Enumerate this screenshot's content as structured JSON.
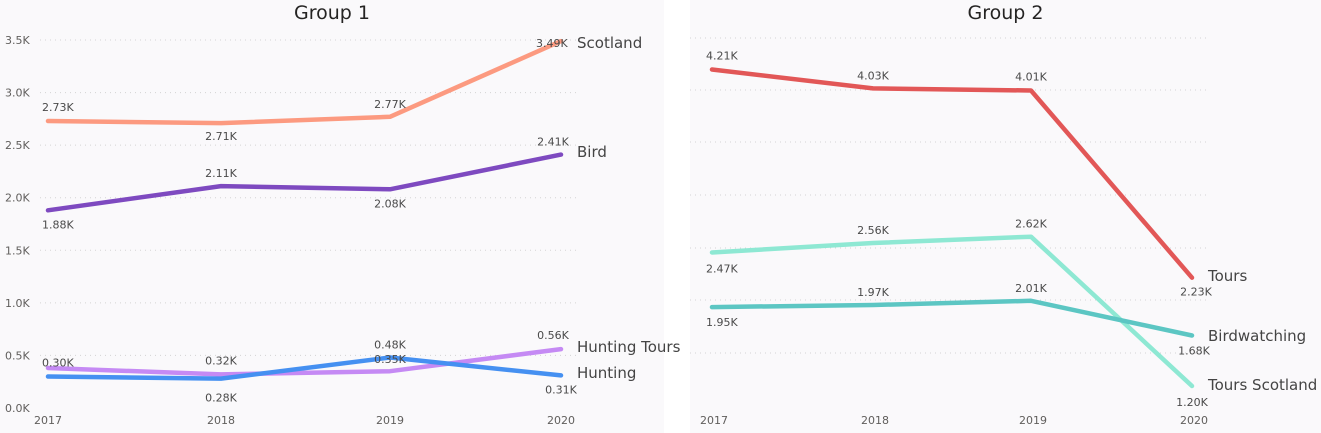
{
  "chart_data": [
    {
      "type": "line",
      "title": "Group 1",
      "x": [
        "2017",
        "2018",
        "2019",
        "2020"
      ],
      "ylim": [
        0,
        3500
      ],
      "yticks": [
        "0.0K",
        "0.5K",
        "1.0K",
        "1.5K",
        "2.0K",
        "2.5K",
        "3.0K",
        "3.5K"
      ],
      "ytick_values": [
        0,
        500,
        1000,
        1500,
        2000,
        2500,
        3000,
        3500
      ],
      "grid": true,
      "series": [
        {
          "name": "Scotland",
          "values": [
            2730,
            2710,
            2770,
            3490
          ],
          "labels": [
            "2.73K",
            "2.71K",
            "2.77K",
            "3.49K"
          ],
          "color": "#fc9a80"
        },
        {
          "name": "Bird",
          "values": [
            1880,
            2110,
            2080,
            2410
          ],
          "labels": [
            "1.88K",
            "2.11K",
            "2.08K",
            "2.41K"
          ],
          "color": "#7e4ac0"
        },
        {
          "name": "Hunting Tours",
          "values": [
            380,
            320,
            350,
            560
          ],
          "labels": [
            "",
            "0.32K",
            "0.35K",
            "0.56K"
          ],
          "color": "#c58af4"
        },
        {
          "name": "Hunting",
          "values": [
            300,
            280,
            480,
            310
          ],
          "labels": [
            "0.30K",
            "0.28K",
            "0.48K",
            "0.31K"
          ],
          "color": "#4590f1"
        }
      ]
    },
    {
      "type": "line",
      "title": "Group 2",
      "x": [
        "2017",
        "2018",
        "2019",
        "2020"
      ],
      "grid": true,
      "series": [
        {
          "name": "Tours",
          "values": [
            4210,
            4030,
            4010,
            2230
          ],
          "labels": [
            "4.21K",
            "4.03K",
            "4.01K",
            "2.23K"
          ],
          "color": "#e25757"
        },
        {
          "name": "Tours Scotland",
          "values": [
            2470,
            2560,
            2620,
            1200
          ],
          "labels": [
            "2.47K",
            "2.56K",
            "2.62K",
            "1.20K"
          ],
          "color": "#8ee8d3"
        },
        {
          "name": "Birdwatching",
          "values": [
            1950,
            1970,
            2010,
            1680
          ],
          "labels": [
            "1.95K",
            "1.97K",
            "2.01K",
            "1.68K"
          ],
          "color": "#5cc6c3"
        }
      ]
    }
  ]
}
